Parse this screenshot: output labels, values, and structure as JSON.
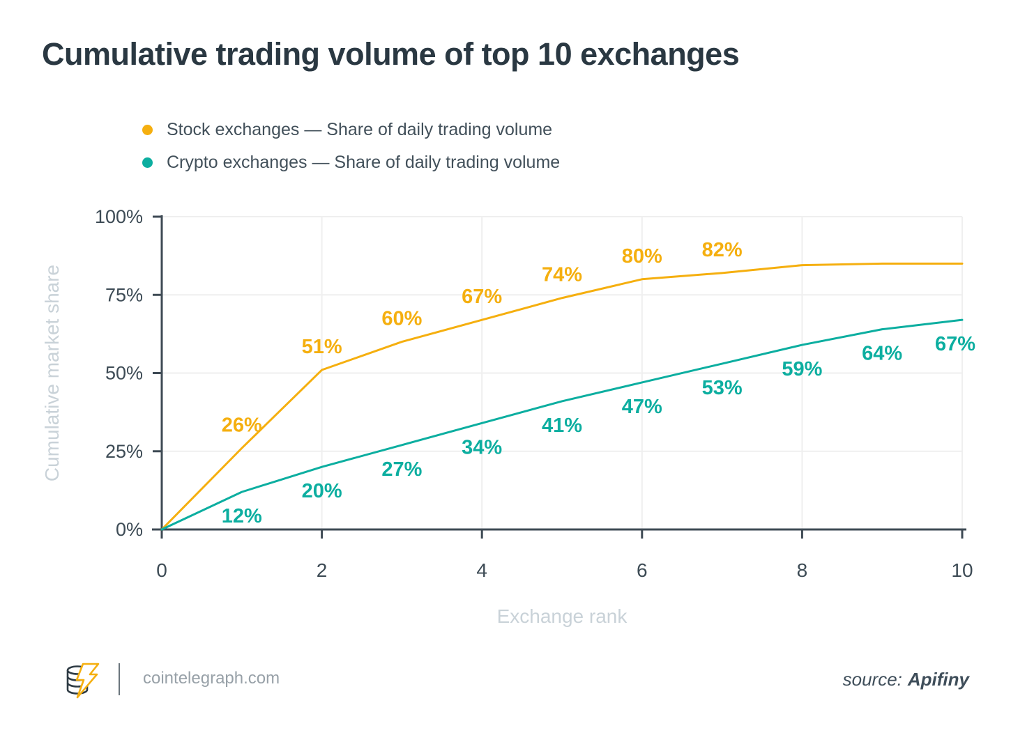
{
  "title": "Cumulative trading volume of top 10 exchanges",
  "chart_data": {
    "type": "line",
    "x": [
      0,
      1,
      2,
      3,
      4,
      5,
      6,
      7,
      8,
      9,
      10
    ],
    "series": [
      {
        "name": "Stock exchanges — Share of daily trading volume",
        "color": "#F5AF0F",
        "values": [
          0,
          26,
          51,
          60,
          67,
          74,
          80,
          82,
          84.5,
          85,
          85
        ],
        "labels": [
          "",
          "26%",
          "51%",
          "60%",
          "67%",
          "74%",
          "80%",
          "82%",
          "",
          "",
          ""
        ],
        "label_side": "above"
      },
      {
        "name": "Crypto exchanges — Share of daily trading volume",
        "color": "#0CAEA0",
        "values": [
          0,
          12,
          20,
          27,
          34,
          41,
          47,
          53,
          59,
          64,
          67
        ],
        "labels": [
          "",
          "12%",
          "20%",
          "27%",
          "34%",
          "41%",
          "47%",
          "53%",
          "59%",
          "64%",
          "67%"
        ],
        "label_side": "below"
      }
    ],
    "xlabel": "Exchange rank",
    "ylabel": "Cumulative market share",
    "xlim": [
      0,
      10
    ],
    "ylim": [
      0,
      100
    ],
    "x_ticks": [
      "0",
      "2",
      "4",
      "6",
      "8",
      "10"
    ],
    "y_ticks": [
      "0%",
      "25%",
      "50%",
      "75%",
      "100%"
    ],
    "grid": true,
    "legend_position": "top-left"
  },
  "footer": {
    "site": "cointelegraph.com",
    "source_label": "source:",
    "source_name": "Apifiny"
  },
  "colors": {
    "title_text": "#2A3842",
    "tick_text": "#3D4B55",
    "axis_line": "#3E4A54",
    "gridline": "#EFEFEF",
    "axis_title_text": "#C9D2D8"
  }
}
